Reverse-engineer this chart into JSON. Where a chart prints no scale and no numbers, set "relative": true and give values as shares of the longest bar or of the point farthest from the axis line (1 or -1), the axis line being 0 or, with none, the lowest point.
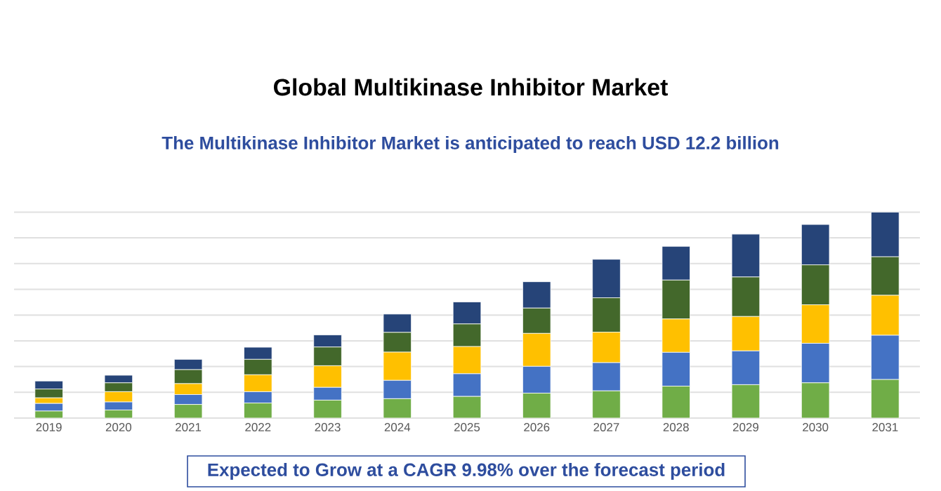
{
  "chart_data": {
    "type": "bar",
    "stacked": true,
    "relative": true,
    "grid": "y",
    "title": "Global Multikinase Inhibitor Market",
    "subtitle": "The Multikinase Inhibitor Market is anticipated to reach USD 12.2 billion",
    "annotations": [
      "Expected to Grow at a CAGR 9.98% over the forecast period"
    ],
    "categories": [
      "2019",
      "2020",
      "2021",
      "2022",
      "2023",
      "2024",
      "2025",
      "2026",
      "2027",
      "2028",
      "2029",
      "2030",
      "2031"
    ],
    "series": [
      {
        "color": "#70ad47",
        "values": [
          0.034,
          0.039,
          0.066,
          0.073,
          0.087,
          0.094,
          0.105,
          0.121,
          0.132,
          0.155,
          0.162,
          0.171,
          0.187
        ]
      },
      {
        "color": "#4472c4",
        "values": [
          0.037,
          0.039,
          0.048,
          0.055,
          0.062,
          0.089,
          0.11,
          0.13,
          0.137,
          0.164,
          0.164,
          0.192,
          0.215
        ]
      },
      {
        "color": "#ffc000",
        "values": [
          0.027,
          0.05,
          0.053,
          0.082,
          0.105,
          0.137,
          0.132,
          0.16,
          0.148,
          0.162,
          0.167,
          0.187,
          0.194
        ]
      },
      {
        "color": "#43682b",
        "values": [
          0.043,
          0.043,
          0.068,
          0.075,
          0.091,
          0.096,
          0.11,
          0.123,
          0.167,
          0.189,
          0.192,
          0.194,
          0.187
        ]
      },
      {
        "color": "#264478",
        "values": [
          0.039,
          0.037,
          0.05,
          0.059,
          0.059,
          0.089,
          0.107,
          0.128,
          0.187,
          0.164,
          0.208,
          0.196,
          0.217
        ]
      }
    ]
  }
}
